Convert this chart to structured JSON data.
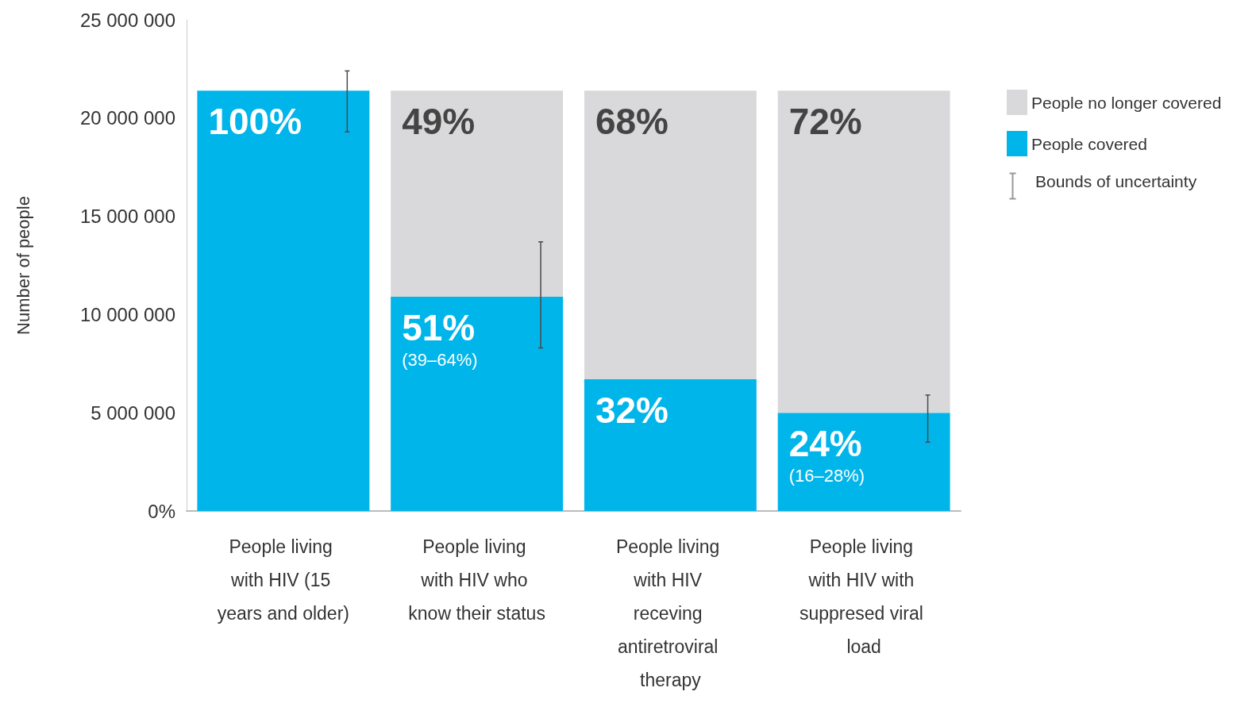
{
  "chart_data": {
    "type": "bar",
    "stacked": true,
    "ylabel": "Number of people",
    "categories": [
      "People living with HIV (15 years and older)",
      "People living with HIV who know their status",
      "People living with HIV receving antiretroviral therapy",
      "People living with HIV with suppresed viral load"
    ],
    "series": [
      {
        "name": "People covered",
        "color": "#00b5ea",
        "values": [
          21400000,
          10900000,
          6700000,
          5000000
        ],
        "errors": [
          [
            19300000,
            22400000
          ],
          [
            8300000,
            13700000
          ],
          null,
          [
            3500000,
            5900000
          ]
        ]
      },
      {
        "name": "People no longer covered",
        "color": "#d9d9db",
        "values": [
          null,
          10500000,
          14700000,
          16400000
        ]
      }
    ],
    "ylim": [
      0,
      25000000
    ],
    "yticks": [
      {
        "value": 0,
        "label": "0%"
      },
      {
        "value": 5000000,
        "label": "5 000 000"
      },
      {
        "value": 10000000,
        "label": "10 000 000"
      },
      {
        "value": 15000000,
        "label": "15 000 000"
      },
      {
        "value": 20000000,
        "label": "20 000 000"
      },
      {
        "value": 25000000,
        "label": "25 000 000"
      }
    ],
    "grid": false,
    "legend": "top right",
    "annotations": [
      "Bounds of uncertainty",
      {
        "text": "100%",
        "x": "People living with HIV (15 years and older)",
        "y": 21400000
      },
      {
        "text": "49%",
        "x": "People living with HIV who know their status",
        "y": 21400000
      },
      {
        "text": "51%\n(39–64%)",
        "x": "People living with HIV who know their status",
        "y": 10900000
      },
      {
        "text": "68%",
        "x": "People living with HIV receving antiretroviral therapy",
        "y": 21400000
      },
      {
        "text": "32%",
        "x": "People living with HIV receving antiretroviral therapy",
        "y": 6700000
      },
      {
        "text": "72%",
        "x": "People living with HIV with suppresed viral load",
        "y": 21400000
      },
      {
        "text": "24%\n(16–28%)",
        "x": "People living with HIV with suppresed viral load",
        "y": 5000000
      }
    ]
  }
}
